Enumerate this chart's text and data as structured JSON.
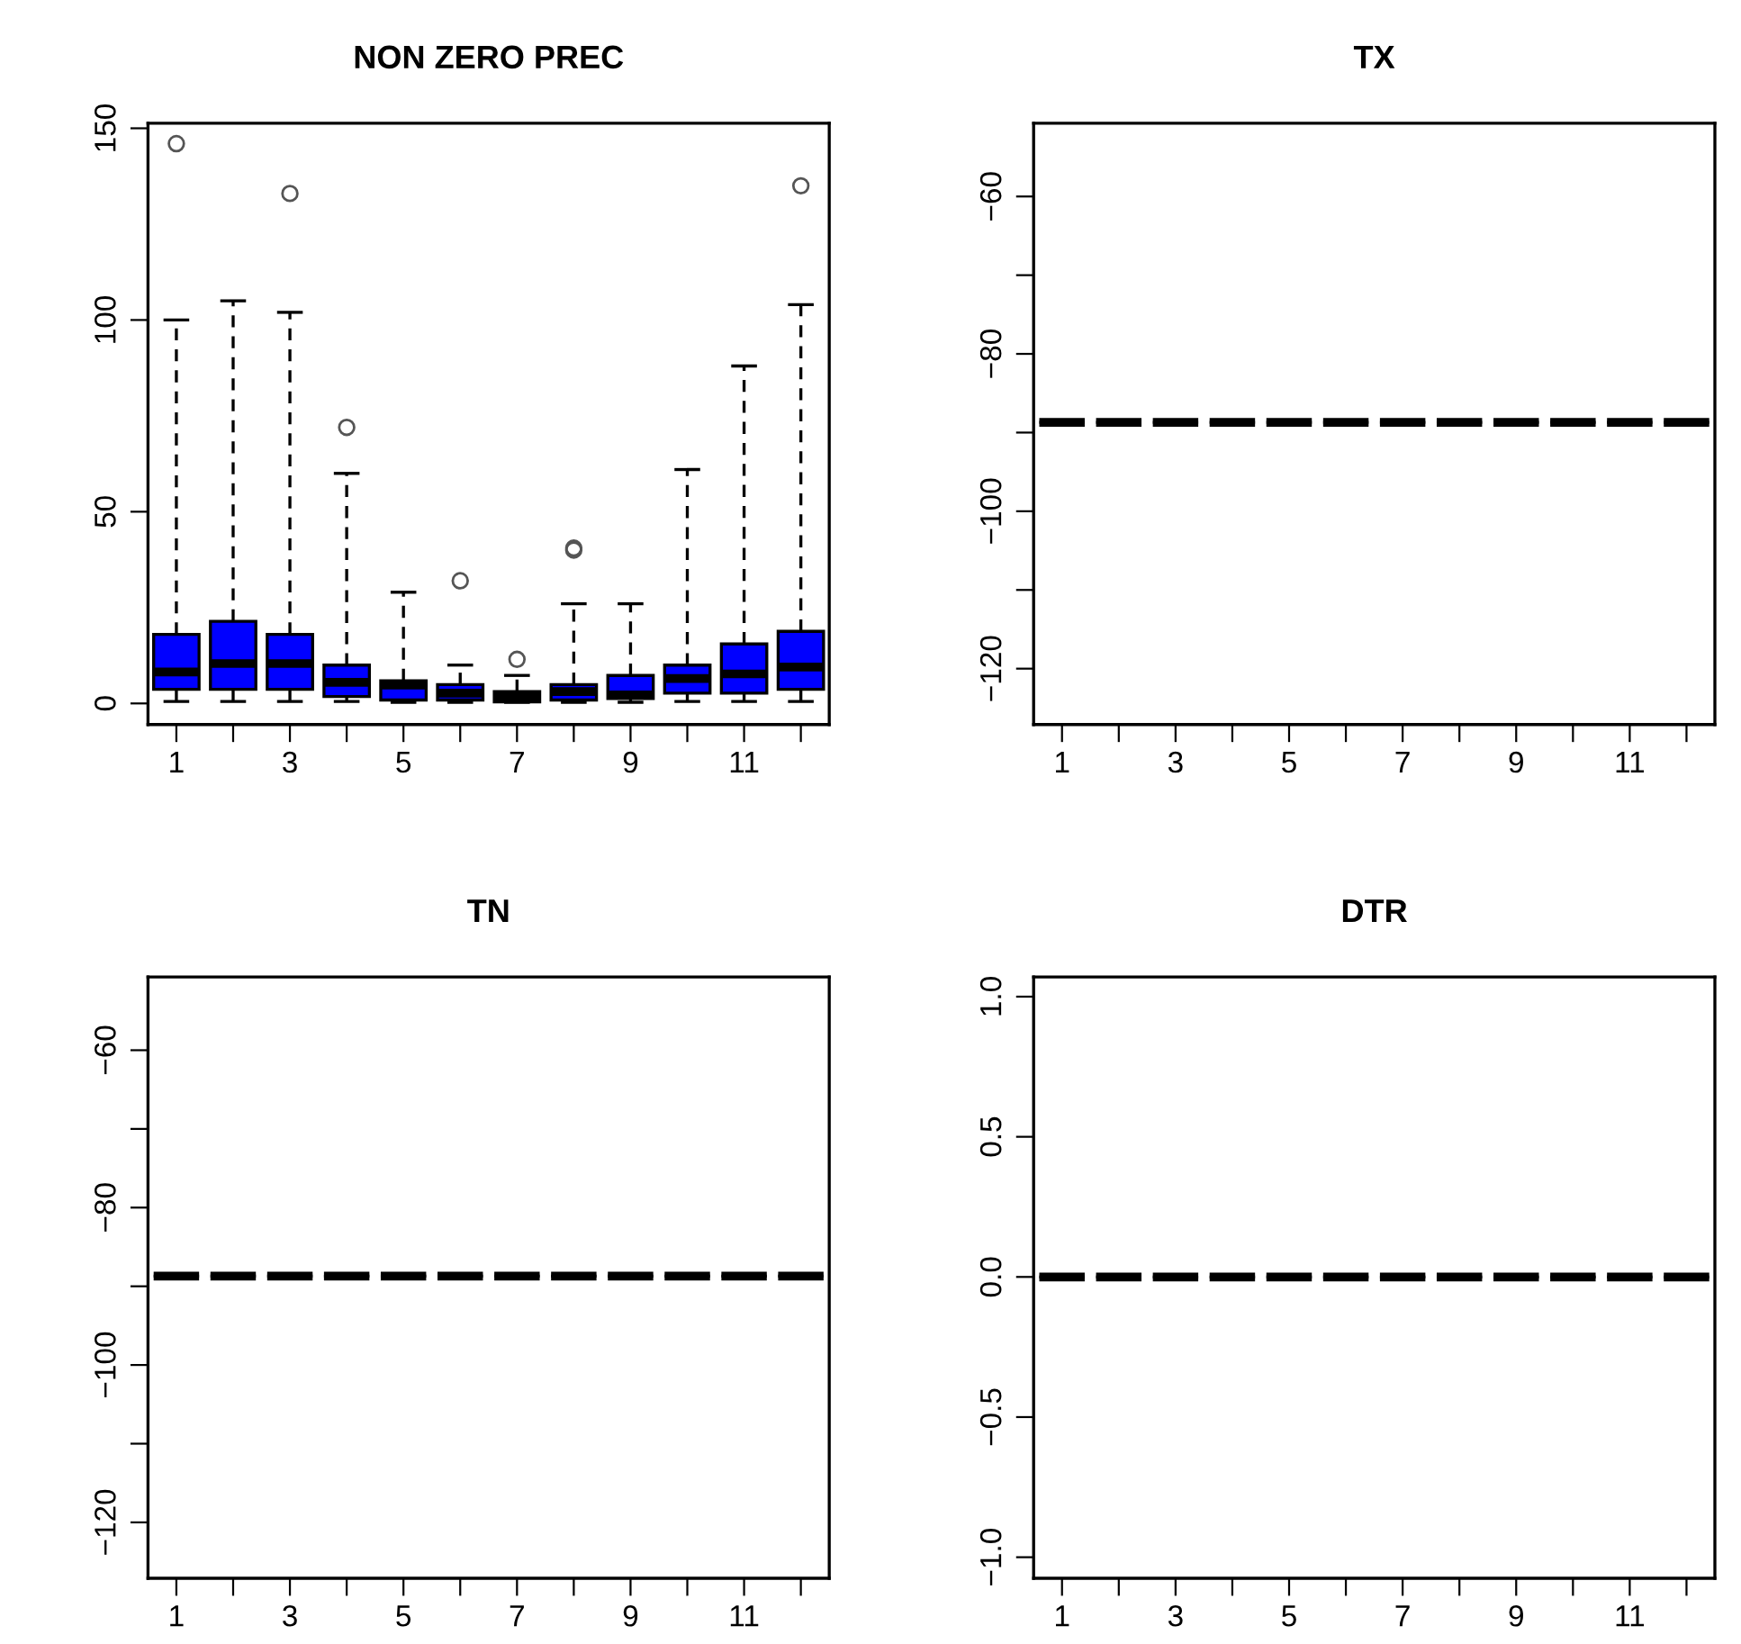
{
  "chart_data": [
    {
      "type": "box",
      "title": "NON ZERO PREC",
      "color": "#0000ff",
      "grid": false,
      "categories": [
        "1",
        null,
        "3",
        null,
        "5",
        null,
        "7",
        null,
        "9",
        null,
        "11",
        null
      ],
      "ylim": [
        -5.5,
        151.3
      ],
      "yticks": [
        0,
        50,
        100,
        150
      ],
      "boxes": [
        {
          "low": 0.5,
          "q1": 3.7,
          "median": 8.2,
          "q3": 18,
          "high": 100,
          "outliers": [
            146
          ]
        },
        {
          "low": 0.5,
          "q1": 3.7,
          "median": 10.4,
          "q3": 21.4,
          "high": 105
        },
        {
          "low": 0.5,
          "q1": 3.7,
          "median": 10.4,
          "q3": 18,
          "high": 102,
          "outliers": [
            133
          ]
        },
        {
          "low": 0.5,
          "q1": 1.8,
          "median": 5.5,
          "q3": 10,
          "high": 60,
          "outliers": [
            72
          ]
        },
        {
          "low": 0.3,
          "q1": 0.9,
          "median": 4.8,
          "q3": 5.9,
          "high": 29
        },
        {
          "low": 0.3,
          "q1": 0.9,
          "median": 2.7,
          "q3": 4.9,
          "high": 10,
          "outliers": [
            32
          ]
        },
        {
          "low": 0.3,
          "q1": 0.4,
          "median": 1.8,
          "q3": 3.1,
          "high": 7.3,
          "outliers": [
            11.5
          ]
        },
        {
          "low": 0.3,
          "q1": 0.9,
          "median": 3.1,
          "q3": 4.9,
          "high": 26,
          "outliers": [
            40,
            40.5
          ]
        },
        {
          "low": 0.3,
          "q1": 1.3,
          "median": 2.2,
          "q3": 7.3,
          "high": 26
        },
        {
          "low": 0.5,
          "q1": 2.7,
          "median": 6.5,
          "q3": 10,
          "high": 61
        },
        {
          "low": 0.5,
          "q1": 2.7,
          "median": 7.7,
          "q3": 15.5,
          "high": 88
        },
        {
          "low": 0.5,
          "q1": 3.7,
          "median": 9.5,
          "q3": 18.8,
          "high": 104,
          "outliers": [
            135
          ]
        }
      ]
    },
    {
      "type": "box",
      "title": "TX",
      "grid": false,
      "categories": [
        "1",
        null,
        "3",
        null,
        "5",
        null,
        "7",
        null,
        "9",
        null,
        "11",
        null
      ],
      "ylim": [
        -127.1,
        -50.7
      ],
      "yticks": [
        {
          "value": -120,
          "label": "−120"
        },
        {
          "value": -110,
          "label": null
        },
        {
          "value": -100,
          "label": "−100"
        },
        {
          "value": -90,
          "label": null
        },
        {
          "value": -80,
          "label": "−80"
        },
        {
          "value": -70,
          "label": null
        },
        {
          "value": -60,
          "label": "−60"
        }
      ],
      "boxes": [
        {
          "low": -88.7,
          "q1": -88.7,
          "median": -88.7,
          "q3": -88.7,
          "high": -88.7
        },
        {
          "low": -88.7,
          "q1": -88.7,
          "median": -88.7,
          "q3": -88.7,
          "high": -88.7
        },
        {
          "low": -88.7,
          "q1": -88.7,
          "median": -88.7,
          "q3": -88.7,
          "high": -88.7
        },
        {
          "low": -88.7,
          "q1": -88.7,
          "median": -88.7,
          "q3": -88.7,
          "high": -88.7
        },
        {
          "low": -88.7,
          "q1": -88.7,
          "median": -88.7,
          "q3": -88.7,
          "high": -88.7
        },
        {
          "low": -88.7,
          "q1": -88.7,
          "median": -88.7,
          "q3": -88.7,
          "high": -88.7
        },
        {
          "low": -88.7,
          "q1": -88.7,
          "median": -88.7,
          "q3": -88.7,
          "high": -88.7
        },
        {
          "low": -88.7,
          "q1": -88.7,
          "median": -88.7,
          "q3": -88.7,
          "high": -88.7
        },
        {
          "low": -88.7,
          "q1": -88.7,
          "median": -88.7,
          "q3": -88.7,
          "high": -88.7
        },
        {
          "low": -88.7,
          "q1": -88.7,
          "median": -88.7,
          "q3": -88.7,
          "high": -88.7
        },
        {
          "low": -88.7,
          "q1": -88.7,
          "median": -88.7,
          "q3": -88.7,
          "high": -88.7
        },
        {
          "low": -88.7,
          "q1": -88.7,
          "median": -88.7,
          "q3": -88.7,
          "high": -88.7
        }
      ]
    },
    {
      "type": "box",
      "title": "TN",
      "grid": false,
      "categories": [
        "1",
        null,
        "3",
        null,
        "5",
        null,
        "7",
        null,
        "9",
        null,
        "11",
        null
      ],
      "ylim": [
        -127.1,
        -50.7
      ],
      "yticks": [
        {
          "value": -120,
          "label": "−120"
        },
        {
          "value": -110,
          "label": null
        },
        {
          "value": -100,
          "label": "−100"
        },
        {
          "value": -90,
          "label": null
        },
        {
          "value": -80,
          "label": "−80"
        },
        {
          "value": -70,
          "label": null
        },
        {
          "value": -60,
          "label": "−60"
        }
      ],
      "boxes": [
        {
          "low": -88.7,
          "q1": -88.7,
          "median": -88.7,
          "q3": -88.7,
          "high": -88.7
        },
        {
          "low": -88.7,
          "q1": -88.7,
          "median": -88.7,
          "q3": -88.7,
          "high": -88.7
        },
        {
          "low": -88.7,
          "q1": -88.7,
          "median": -88.7,
          "q3": -88.7,
          "high": -88.7
        },
        {
          "low": -88.7,
          "q1": -88.7,
          "median": -88.7,
          "q3": -88.7,
          "high": -88.7
        },
        {
          "low": -88.7,
          "q1": -88.7,
          "median": -88.7,
          "q3": -88.7,
          "high": -88.7
        },
        {
          "low": -88.7,
          "q1": -88.7,
          "median": -88.7,
          "q3": -88.7,
          "high": -88.7
        },
        {
          "low": -88.7,
          "q1": -88.7,
          "median": -88.7,
          "q3": -88.7,
          "high": -88.7
        },
        {
          "low": -88.7,
          "q1": -88.7,
          "median": -88.7,
          "q3": -88.7,
          "high": -88.7
        },
        {
          "low": -88.7,
          "q1": -88.7,
          "median": -88.7,
          "q3": -88.7,
          "high": -88.7
        },
        {
          "low": -88.7,
          "q1": -88.7,
          "median": -88.7,
          "q3": -88.7,
          "high": -88.7
        },
        {
          "low": -88.7,
          "q1": -88.7,
          "median": -88.7,
          "q3": -88.7,
          "high": -88.7
        },
        {
          "low": -88.7,
          "q1": -88.7,
          "median": -88.7,
          "q3": -88.7,
          "high": -88.7
        }
      ]
    },
    {
      "type": "box",
      "title": "DTR",
      "grid": false,
      "categories": [
        "1",
        null,
        "3",
        null,
        "5",
        null,
        "7",
        null,
        "9",
        null,
        "11",
        null
      ],
      "ylim": [
        -1.075,
        1.07
      ],
      "yticks": [
        {
          "value": -1,
          "label": "−1.0"
        },
        {
          "value": -0.5,
          "label": "−0.5"
        },
        {
          "value": 0,
          "label": "0.0"
        },
        {
          "value": 0.5,
          "label": "0.5"
        },
        {
          "value": 1,
          "label": "1.0"
        }
      ],
      "boxes": [
        {
          "low": 0,
          "q1": 0,
          "median": 0,
          "q3": 0,
          "high": 0
        },
        {
          "low": 0,
          "q1": 0,
          "median": 0,
          "q3": 0,
          "high": 0
        },
        {
          "low": 0,
          "q1": 0,
          "median": 0,
          "q3": 0,
          "high": 0
        },
        {
          "low": 0,
          "q1": 0,
          "median": 0,
          "q3": 0,
          "high": 0
        },
        {
          "low": 0,
          "q1": 0,
          "median": 0,
          "q3": 0,
          "high": 0
        },
        {
          "low": 0,
          "q1": 0,
          "median": 0,
          "q3": 0,
          "high": 0
        },
        {
          "low": 0,
          "q1": 0,
          "median": 0,
          "q3": 0,
          "high": 0
        },
        {
          "low": 0,
          "q1": 0,
          "median": 0,
          "q3": 0,
          "high": 0
        },
        {
          "low": 0,
          "q1": 0,
          "median": 0,
          "q3": 0,
          "high": 0
        },
        {
          "low": 0,
          "q1": 0,
          "median": 0,
          "q3": 0,
          "high": 0
        },
        {
          "low": 0,
          "q1": 0,
          "median": 0,
          "q3": 0,
          "high": 0
        },
        {
          "low": 0,
          "q1": 0,
          "median": 0,
          "q3": 0,
          "high": 0
        }
      ]
    }
  ]
}
